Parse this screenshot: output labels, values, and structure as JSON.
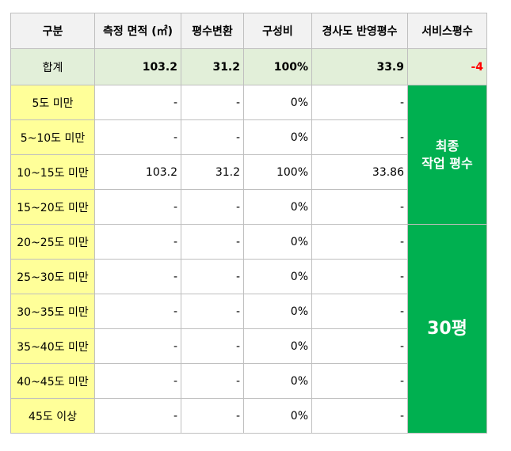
{
  "header": [
    "구분",
    "측정 면적 (㎡)",
    "평수변환",
    "구성비",
    "경사도 반영평수",
    "서비스평수"
  ],
  "total": {
    "label": "합계",
    "area": "103.2",
    "pyeong": "31.2",
    "ratio": "100%",
    "slope_pyeong": "33.9",
    "service": "-4"
  },
  "rows": [
    {
      "label": "5도 미만",
      "area": "-",
      "pyeong": "-",
      "ratio": "0%",
      "slope_pyeong": "-"
    },
    {
      "label": "5~10도 미만",
      "area": "-",
      "pyeong": "-",
      "ratio": "0%",
      "slope_pyeong": "-"
    },
    {
      "label": "10~15도 미만",
      "area": "103.2",
      "pyeong": "31.2",
      "ratio": "100%",
      "slope_pyeong": "33.86"
    },
    {
      "label": "15~20도 미만",
      "area": "-",
      "pyeong": "-",
      "ratio": "0%",
      "slope_pyeong": "-"
    },
    {
      "label": "20~25도 미만",
      "area": "-",
      "pyeong": "-",
      "ratio": "0%",
      "slope_pyeong": "-"
    },
    {
      "label": "25~30도 미만",
      "area": "-",
      "pyeong": "-",
      "ratio": "0%",
      "slope_pyeong": "-"
    },
    {
      "label": "30~35도 미만",
      "area": "-",
      "pyeong": "-",
      "ratio": "0%",
      "slope_pyeong": "-"
    },
    {
      "label": "35~40도 미만",
      "area": "-",
      "pyeong": "-",
      "ratio": "0%",
      "slope_pyeong": "-"
    },
    {
      "label": "40~45도 미만",
      "area": "-",
      "pyeong": "-",
      "ratio": "0%",
      "slope_pyeong": "-"
    },
    {
      "label": "45도 이상",
      "area": "-",
      "pyeong": "-",
      "ratio": "0%",
      "slope_pyeong": "-"
    }
  ],
  "final": {
    "line1": "최종",
    "line2": "작업 평수",
    "value": "30평"
  },
  "colors": {
    "header_bg": "#f2f2f2",
    "total_bg": "#e2efd9",
    "category_bg": "#ffff99",
    "final_bg": "#00b050",
    "negative": "#ff0000",
    "border": "#bfbfbf"
  }
}
